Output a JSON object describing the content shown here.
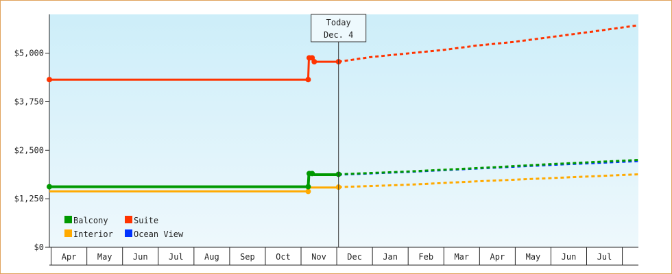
{
  "chart_data": {
    "type": "line",
    "title": "",
    "xlabel": "",
    "ylabel": "",
    "ylim": [
      0,
      6000
    ],
    "y_ticks": [
      "$0",
      "$1,250",
      "$2,500",
      "$3,750",
      "$5,000"
    ],
    "y_tick_values": [
      0,
      1250,
      2500,
      3750,
      5000
    ],
    "x_categories": [
      "Apr",
      "May",
      "Jun",
      "Jul",
      "Aug",
      "Sep",
      "Oct",
      "Nov",
      "Dec",
      "Jan",
      "Feb",
      "Mar",
      "Apr",
      "May",
      "Jun",
      "Jul"
    ],
    "xlim_months": [
      0,
      16.5
    ],
    "background_gradient": [
      "#cdeef9",
      "#eef8fc"
    ],
    "today_marker": {
      "line1": "Today",
      "line2": "Dec. 4",
      "x": 8.1
    },
    "legend_placement": "bottom-left",
    "series": [
      {
        "name": "Suite",
        "color": "#ff3300",
        "history": [
          [
            0,
            4320
          ],
          [
            7.25,
            4320
          ],
          [
            7.27,
            4880
          ],
          [
            7.35,
            4880
          ],
          [
            7.42,
            4780
          ],
          [
            8.1,
            4780
          ]
        ],
        "markers": [
          [
            0,
            4320
          ],
          [
            7.25,
            4320
          ],
          [
            7.28,
            4880
          ],
          [
            7.36,
            4880
          ],
          [
            7.42,
            4780
          ],
          [
            8.1,
            4780
          ]
        ],
        "forecast": [
          [
            8.1,
            4780
          ],
          [
            9,
            4900
          ],
          [
            10,
            4990
          ],
          [
            11,
            5080
          ],
          [
            12,
            5200
          ],
          [
            13,
            5290
          ],
          [
            14,
            5410
          ],
          [
            15,
            5530
          ],
          [
            16.5,
            5720
          ]
        ]
      },
      {
        "name": "Balcony",
        "color": "#009900",
        "history": [
          [
            0,
            1560
          ],
          [
            7.25,
            1560
          ],
          [
            7.27,
            1890
          ],
          [
            7.35,
            1890
          ],
          [
            7.42,
            1870
          ],
          [
            8.1,
            1870
          ]
        ],
        "markers": [
          [
            0,
            1560
          ],
          [
            7.25,
            1560
          ],
          [
            7.28,
            1900
          ],
          [
            7.36,
            1900
          ],
          [
            8.1,
            1880
          ]
        ],
        "forecast": [
          [
            8.1,
            1880
          ],
          [
            10,
            1950
          ],
          [
            12,
            2040
          ],
          [
            14,
            2140
          ],
          [
            16.5,
            2250
          ]
        ]
      },
      {
        "name": "Interior",
        "color": "#ffaa00",
        "history": [
          [
            0,
            1440
          ],
          [
            7.25,
            1440
          ],
          [
            7.27,
            1540
          ],
          [
            8.1,
            1540
          ]
        ],
        "markers": [
          [
            7.25,
            1440
          ],
          [
            8.1,
            1550
          ]
        ],
        "forecast": [
          [
            8.1,
            1550
          ],
          [
            10,
            1610
          ],
          [
            12,
            1700
          ],
          [
            14,
            1780
          ],
          [
            16.5,
            1880
          ]
        ]
      },
      {
        "name": "Ocean View",
        "color": "#0033ff",
        "history": [],
        "markers": [],
        "forecast": [
          [
            8.1,
            1870
          ],
          [
            10,
            1940
          ],
          [
            12,
            2030
          ],
          [
            14,
            2120
          ],
          [
            16.5,
            2220
          ]
        ]
      }
    ],
    "legend_order": [
      "Balcony",
      "Suite",
      "Interior",
      "Ocean View"
    ]
  }
}
